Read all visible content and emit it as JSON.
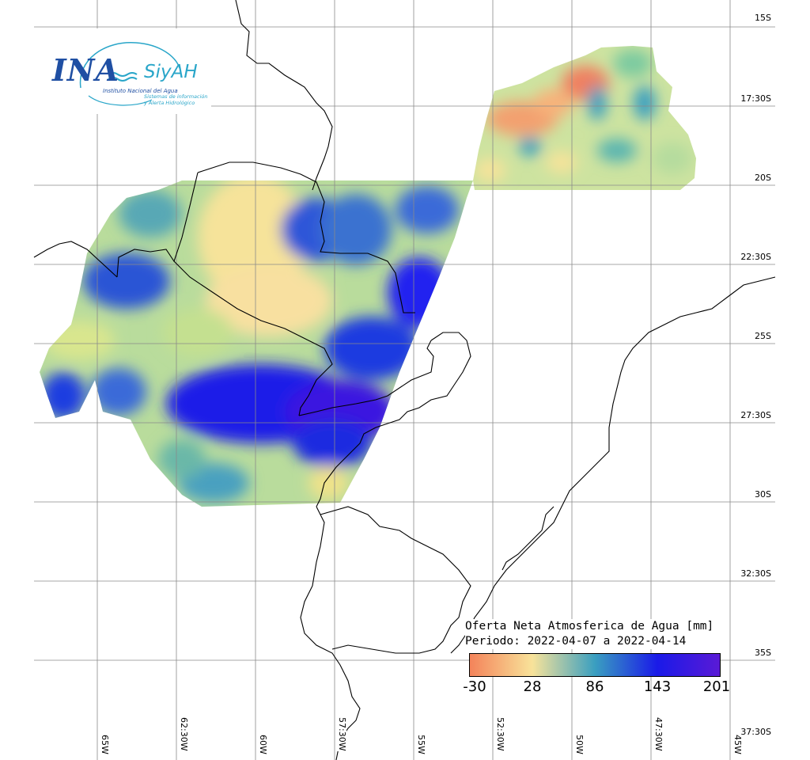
{
  "logo": {
    "ina": "INA",
    "siyah": "SiyAH",
    "institute": "Instituto Nacional del Agua",
    "subtitle_line1": "Sistemas de información",
    "subtitle_line2": "y Alerta Hidrológico"
  },
  "legend": {
    "title": "Oferta Neta Atmosferica de Agua [mm]",
    "period": "Periodo: 2022-04-07 a 2022-04-14",
    "ticks": [
      "-30",
      "28",
      "86",
      "143",
      "201"
    ],
    "colors": [
      "#f4835a",
      "#f8e39a",
      "#3a9fc0",
      "#1a1ae8",
      "#5a1ad6"
    ]
  },
  "lat_labels": [
    "15S",
    "17:30S",
    "20S",
    "22:30S",
    "25S",
    "27:30S",
    "30S",
    "32:30S",
    "35S",
    "37:30S"
  ],
  "lon_labels": [
    "65W",
    "62:30W",
    "60W",
    "57:30W",
    "55W",
    "52:30W",
    "50W",
    "47:30W",
    "45W"
  ]
}
